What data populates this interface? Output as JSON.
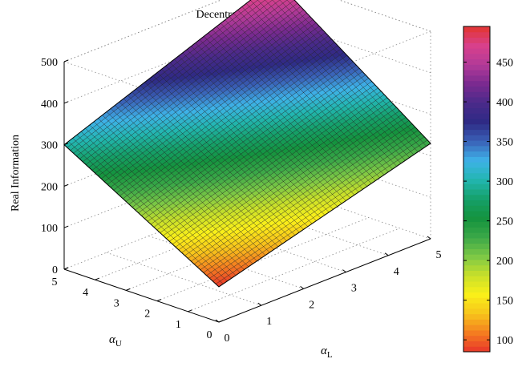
{
  "chart_data": {
    "type": "surface",
    "title": "Decentralized Decision",
    "xlabel": "α_L",
    "ylabel": "α_U",
    "zlabel": "Real Information",
    "x_ticks": [
      0,
      1,
      2,
      3,
      4,
      5
    ],
    "y_ticks": [
      0,
      1,
      2,
      3,
      4,
      5
    ],
    "z_ticks": [
      0,
      100,
      200,
      300,
      400,
      500
    ],
    "xlim": [
      0,
      5
    ],
    "ylim": [
      0,
      5
    ],
    "zlim": [
      0,
      500
    ],
    "corners": [
      {
        "x": 0,
        "y": 0,
        "z": 85
      },
      {
        "x": 5,
        "y": 0,
        "z": 230
      },
      {
        "x": 0,
        "y": 5,
        "z": 300
      },
      {
        "x": 5,
        "y": 5,
        "z": 495
      }
    ],
    "grid_lines": 50,
    "grid": true,
    "colorbar": {
      "range": [
        85,
        495
      ],
      "ticks": [
        100,
        150,
        200,
        250,
        300,
        350,
        400,
        450
      ],
      "colormap": [
        "#e8352a",
        "#f47d20",
        "#f7c41b",
        "#faf019",
        "#c8e02a",
        "#7cc846",
        "#3aa848",
        "#14933e",
        "#15a06a",
        "#22b6b0",
        "#3eb2e8",
        "#3a62b8",
        "#2e2a85",
        "#4a2a8a",
        "#7a2a90",
        "#b23a98",
        "#d8408c",
        "#e2362f"
      ]
    }
  }
}
